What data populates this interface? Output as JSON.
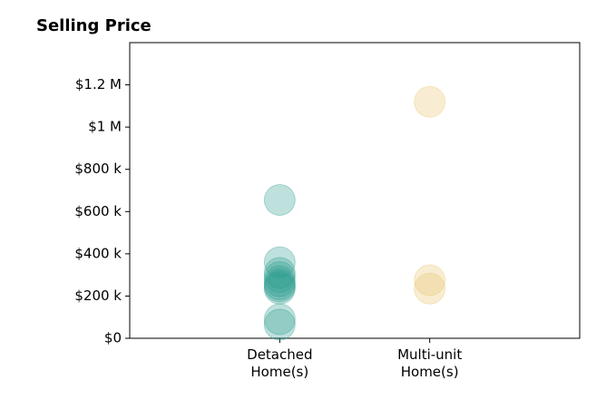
{
  "chart_data": {
    "type": "scatter",
    "title": "Selling Price",
    "categories": [
      "Detached Home(s)",
      "Multi-unit Home(s)"
    ],
    "values": [
      [
        655000,
        360000,
        310000,
        290000,
        270000,
        255000,
        245000,
        235000,
        90000,
        65000
      ],
      [
        1120000,
        275000,
        235000
      ]
    ],
    "colors": [
      "#2a9d8f",
      "#e9c46a"
    ],
    "ylim": [
      0,
      1400000
    ],
    "yticks": [
      {
        "value": 0,
        "label": "$0"
      },
      {
        "value": 200000,
        "label": "$200 k"
      },
      {
        "value": 400000,
        "label": "$400 k"
      },
      {
        "value": 600000,
        "label": "$600 k"
      },
      {
        "value": 800000,
        "label": "$800 k"
      },
      {
        "value": 1000000,
        "label": "$1 M"
      },
      {
        "value": 1200000,
        "label": "$1.2 M"
      }
    ]
  }
}
